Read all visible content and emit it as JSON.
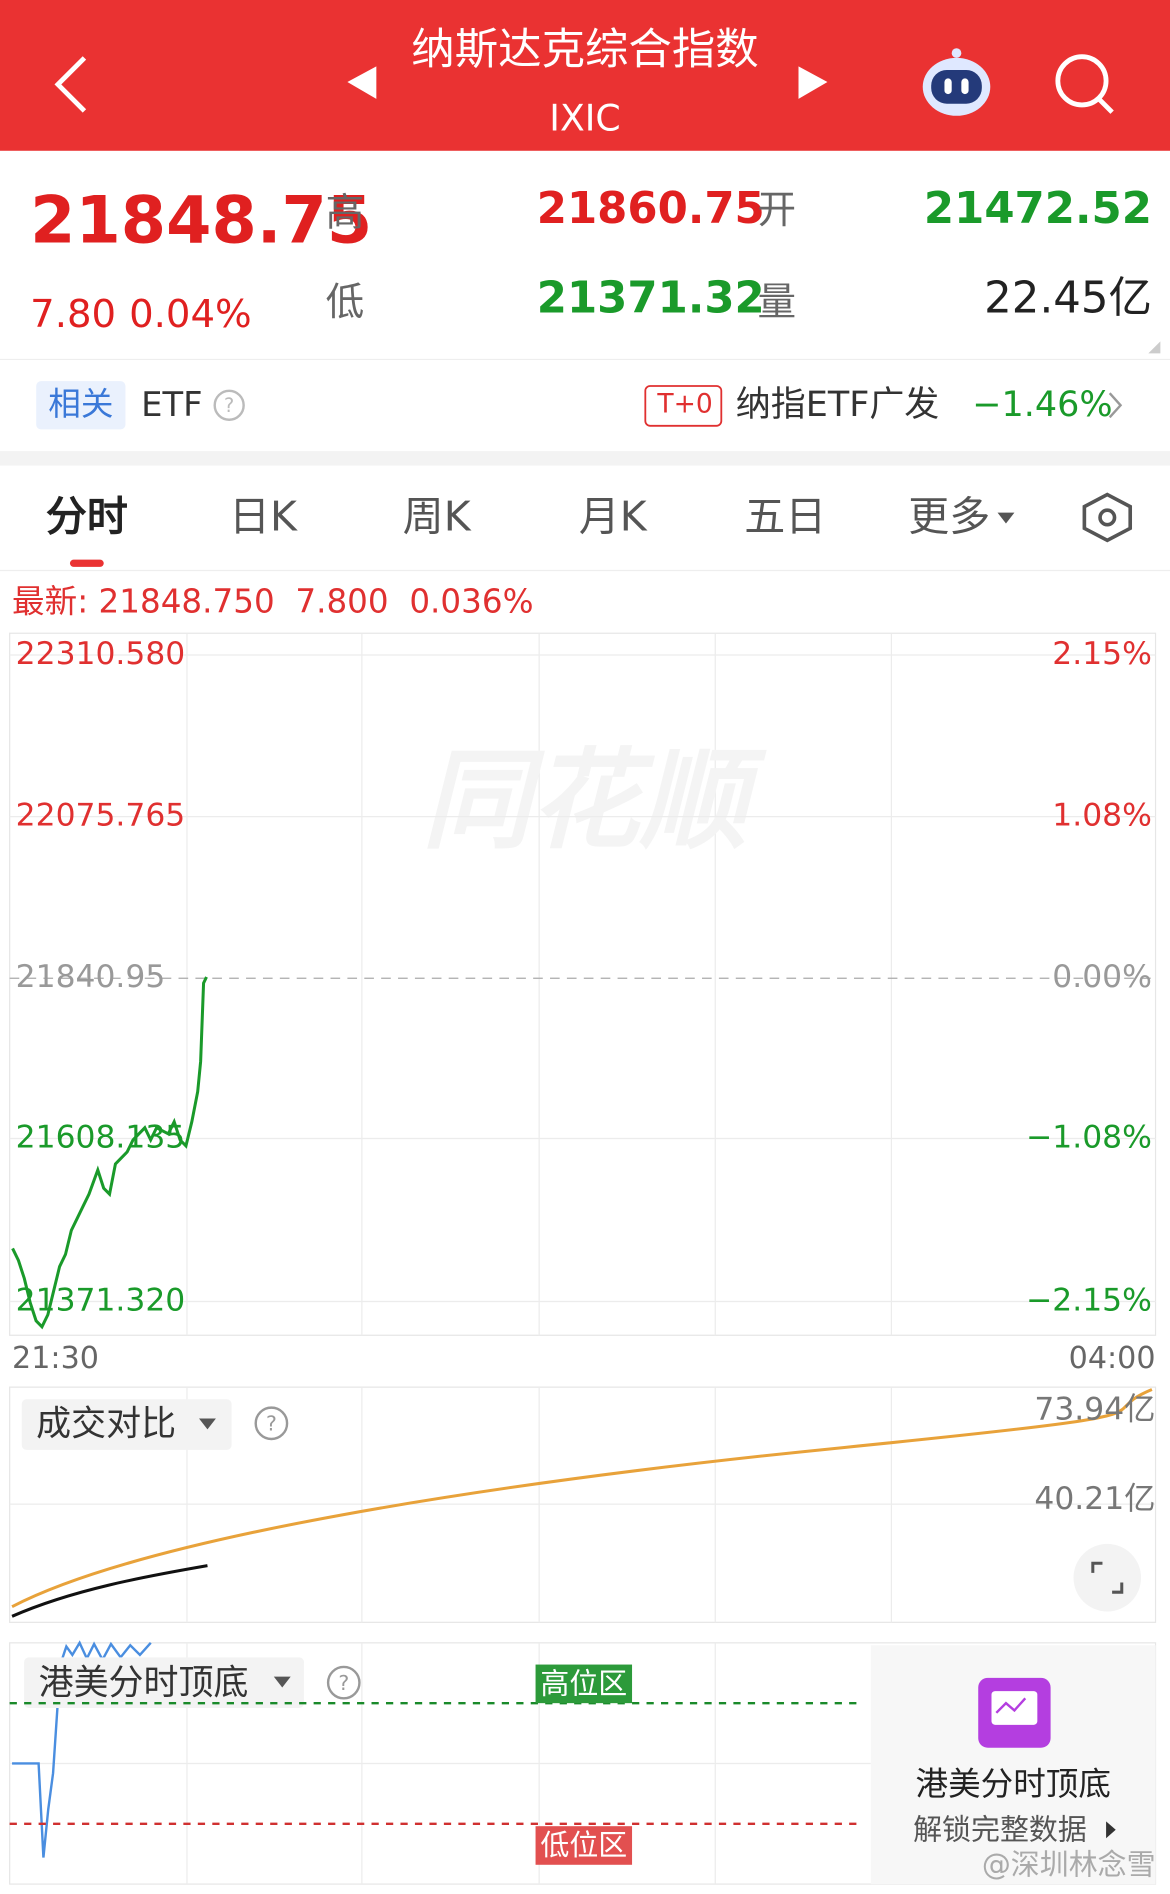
{
  "header": {
    "title": "纳斯达克综合指数",
    "code": "IXIC"
  },
  "quote": {
    "price": "21848.75",
    "change": "7.80",
    "change_pct": "0.04%",
    "high_label": "高",
    "high": "21860.75",
    "open_label": "开",
    "open": "21472.52",
    "low_label": "低",
    "low": "21371.32",
    "volume_label": "量",
    "volume": "22.45亿"
  },
  "etf": {
    "tag": "相关",
    "label": "ETF",
    "t0": "T+0",
    "name": "纳指ETF广发",
    "change": "−1.46%"
  },
  "tabs": [
    "分时",
    "日K",
    "周K",
    "月K",
    "五日",
    "更多"
  ],
  "latest": {
    "label": "最新:",
    "price": "21848.750",
    "change": "7.800",
    "pct": "0.036%"
  },
  "chart_data": {
    "type": "line",
    "x": [
      1,
      3,
      5,
      7,
      9,
      11,
      13,
      15,
      17,
      19,
      21,
      23,
      25,
      27,
      30,
      32,
      34,
      36,
      38,
      40,
      42,
      44,
      46,
      48,
      50,
      54,
      56,
      58,
      60,
      62,
      64,
      65,
      66,
      67
    ],
    "series": [
      {
        "name": "分时",
        "color": "#1a9a2a",
        "values": [
          21448.4,
          21430.9,
          21404.6,
          21369.6,
          21343.3,
          21334.5,
          21352.0,
          21387.1,
          21422.1,
          21439.7,
          21474.7,
          21492.2,
          21509.8,
          21527.3,
          21562.3,
          21536.0,
          21527.3,
          21571.1,
          21579.9,
          21588.6,
          21606.1,
          21614.9,
          21623.7,
          21606.1,
          21623.7,
          21614.9,
          21632.4,
          21606.1,
          21597.4,
          21632.4,
          21676.2,
          21720.0,
          21833.9,
          21842.7
        ]
      }
    ],
    "ylim": [
      21371.32,
      22310.58
    ],
    "yticks": [
      {
        "value": 22310.58,
        "label": "22310.580"
      },
      21840.95,
      {
        "value": 22075.765,
        "label": "22075.765"
      },
      {
        "value": 21608.135,
        "label": "21608.135"
      },
      {
        "value": 21371.32,
        "label": "21371.320"
      }
    ],
    "right_labels": [
      "2.15%",
      "0.00%",
      "1.08%",
      "−1.08%",
      "−2.15%"
    ],
    "x_start": "21:30",
    "x_end": "04:00"
  },
  "volume_panel": {
    "title": "成交对比",
    "top": "73.94亿",
    "mid": "40.21亿"
  },
  "indicator": {
    "title": "港美分时顶底",
    "high_zone": "高位区",
    "low_zone": "低位区",
    "promo_title": "港美分时顶底",
    "promo_action": "解锁完整数据"
  },
  "watermark": "@深圳林念雪"
}
